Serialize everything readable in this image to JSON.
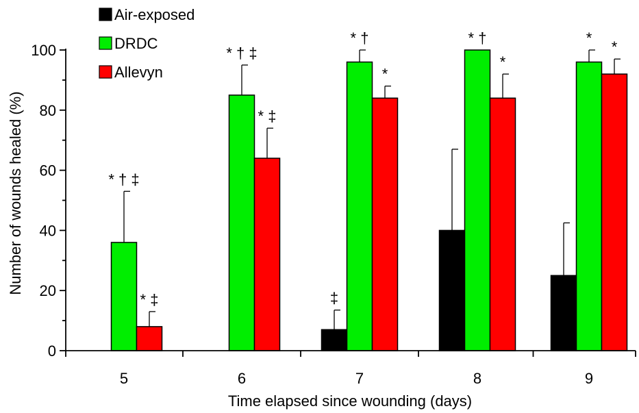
{
  "chart_data": {
    "type": "bar",
    "title": "",
    "xlabel": "Time elapsed since wounding (days)",
    "ylabel": "Number of wounds healed (%)",
    "ylim": [
      0,
      100
    ],
    "yticks": [
      0,
      20,
      40,
      60,
      80,
      100
    ],
    "categories": [
      "5",
      "6",
      "7",
      "8",
      "9"
    ],
    "grid": false,
    "legend_position": "top-left",
    "series": [
      {
        "name": "Air-exposed",
        "color": "#000000",
        "values": [
          0,
          0,
          7,
          40,
          25
        ],
        "errors": [
          0,
          0,
          6.5,
          27,
          17.5
        ],
        "annotations": [
          "",
          "",
          "‡",
          "",
          ""
        ]
      },
      {
        "name": "DRDC",
        "color": "#00ee00",
        "values": [
          36,
          85,
          96,
          100,
          96
        ],
        "errors": [
          17,
          10,
          4,
          0,
          4
        ],
        "annotations": [
          "* † ‡",
          "* † ‡",
          "* †",
          "* †",
          "*"
        ]
      },
      {
        "name": "Allevyn",
        "color": "#ff0000",
        "values": [
          8,
          64,
          84,
          84,
          92
        ],
        "errors": [
          5,
          10,
          4,
          8,
          5
        ],
        "annotations": [
          "* ‡",
          "* ‡",
          "*",
          "*",
          "*"
        ]
      }
    ]
  }
}
